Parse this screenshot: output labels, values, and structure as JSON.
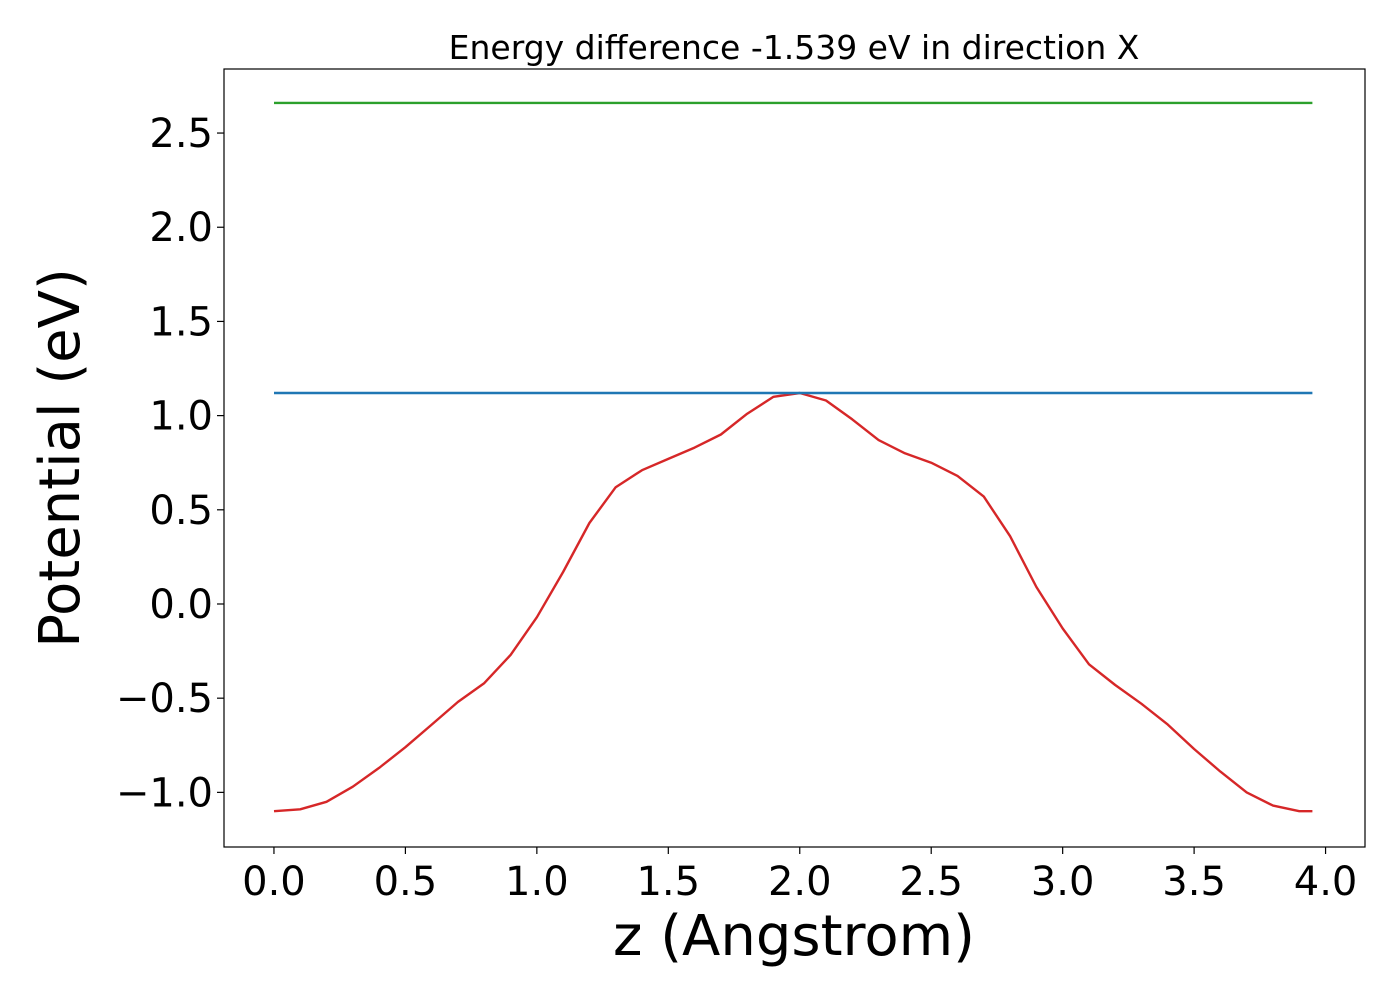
{
  "chart_data": {
    "type": "line",
    "title": "Energy difference -1.539 eV in direction X",
    "xlabel": "z (Angstrom)",
    "ylabel": "Potential (eV)",
    "xlim": [
      -0.19,
      4.15
    ],
    "ylim": [
      -1.29,
      2.84
    ],
    "xticks": [
      0.0,
      0.5,
      1.0,
      1.5,
      2.0,
      2.5,
      3.0,
      3.5,
      4.0
    ],
    "xtick_labels": [
      "0.0",
      "0.5",
      "1.0",
      "1.5",
      "2.0",
      "2.5",
      "3.0",
      "3.5",
      "4.0"
    ],
    "yticks": [
      -1.0,
      -0.5,
      0.0,
      0.5,
      1.0,
      1.5,
      2.0,
      2.5
    ],
    "ytick_labels": [
      "−1.0",
      "−0.5",
      "0.0",
      "0.5",
      "1.0",
      "1.5",
      "2.0",
      "2.5"
    ],
    "grid": false,
    "legend": "none",
    "series": [
      {
        "color": "#d62728",
        "x": [
          0.0,
          0.1,
          0.2,
          0.3,
          0.4,
          0.5,
          0.6,
          0.7,
          0.8,
          0.9,
          1.0,
          1.1,
          1.2,
          1.3,
          1.4,
          1.5,
          1.6,
          1.7,
          1.8,
          1.9,
          2.0,
          2.1,
          2.2,
          2.3,
          2.4,
          2.5,
          2.6,
          2.7,
          2.8,
          2.9,
          3.0,
          3.1,
          3.2,
          3.3,
          3.4,
          3.5,
          3.6,
          3.7,
          3.8,
          3.9,
          3.95
        ],
        "y": [
          -1.1,
          -1.09,
          -1.05,
          -0.97,
          -0.87,
          -0.76,
          -0.64,
          -0.52,
          -0.42,
          -0.27,
          -0.07,
          0.17,
          0.43,
          0.62,
          0.71,
          0.77,
          0.83,
          0.9,
          1.01,
          1.1,
          1.12,
          1.08,
          0.98,
          0.87,
          0.8,
          0.75,
          0.68,
          0.57,
          0.36,
          0.09,
          -0.13,
          -0.32,
          -0.43,
          -0.53,
          -0.64,
          -0.77,
          -0.89,
          -1.0,
          -1.07,
          -1.1,
          -1.1
        ]
      },
      {
        "color": "#1f77b4",
        "x": [
          0.0,
          3.95
        ],
        "y": [
          1.12,
          1.12
        ]
      },
      {
        "color": "#2ca02c",
        "x": [
          0.0,
          3.95
        ],
        "y": [
          2.66,
          2.66
        ]
      }
    ]
  }
}
